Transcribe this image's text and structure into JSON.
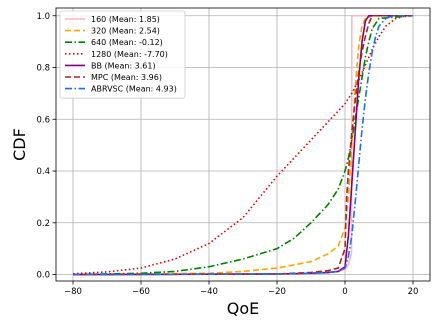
{
  "chart_data": {
    "type": "line",
    "xlabel": "QoE",
    "ylabel": "CDF",
    "xlim": [
      -85,
      25
    ],
    "ylim": [
      -0.025,
      1.03
    ],
    "xticks": [
      -80,
      -60,
      -40,
      -20,
      0,
      20
    ],
    "yticks": [
      0.0,
      0.2,
      0.4,
      0.6,
      0.8,
      1.0
    ],
    "xtick_labels": [
      "−80",
      "−60",
      "−40",
      "−20",
      "0",
      "20"
    ],
    "ytick_labels": [
      "0.0",
      "0.2",
      "0.4",
      "0.6",
      "0.8",
      "1.0"
    ],
    "grid": true,
    "legend_position": "upper-left",
    "series": [
      {
        "name": "160 (Mean: 1.85)",
        "color": "#ffb6c1",
        "dash": "solid",
        "x": [
          -80,
          -20,
          -5,
          -2,
          0,
          1,
          1.9,
          2.0,
          2.1,
          3,
          5,
          10,
          20
        ],
        "y": [
          0,
          0.002,
          0.006,
          0.012,
          0.02,
          0.04,
          0.08,
          1.0,
          1.0,
          1.0,
          1.0,
          1.0,
          1.0
        ]
      },
      {
        "name": "320 (Mean: 2.54)",
        "color": "#ffa500",
        "dash": "dashed",
        "x": [
          -80,
          -40,
          -30,
          -20,
          -10,
          -5,
          -2,
          0,
          1,
          2,
          3,
          4,
          5,
          6,
          8,
          10,
          20
        ],
        "y": [
          0,
          0.005,
          0.012,
          0.025,
          0.05,
          0.08,
          0.11,
          0.18,
          0.3,
          0.5,
          0.72,
          0.88,
          0.96,
          0.99,
          1.0,
          1.0,
          1.0
        ]
      },
      {
        "name": "640 (Mean: -0.12)",
        "color": "#008000",
        "dash": "dashdot",
        "x": [
          -80,
          -60,
          -50,
          -40,
          -30,
          -20,
          -15,
          -10,
          -5,
          -2,
          0,
          1,
          2,
          3,
          4,
          5,
          6,
          7,
          8,
          10,
          20
        ],
        "y": [
          0,
          0.005,
          0.012,
          0.03,
          0.06,
          0.1,
          0.14,
          0.2,
          0.27,
          0.33,
          0.4,
          0.45,
          0.52,
          0.6,
          0.68,
          0.76,
          0.84,
          0.9,
          0.95,
          0.99,
          1.0
        ]
      },
      {
        "name": "1280 (Mean: -7.70)",
        "color": "#e00000",
        "dash": "dotted",
        "x": [
          -80,
          -70,
          -60,
          -50,
          -40,
          -30,
          -20,
          -15,
          -10,
          -5,
          0,
          2,
          4,
          6,
          8,
          10,
          12,
          15,
          18,
          20
        ],
        "y": [
          0.003,
          0.01,
          0.025,
          0.06,
          0.12,
          0.22,
          0.38,
          0.45,
          0.52,
          0.59,
          0.66,
          0.7,
          0.75,
          0.81,
          0.87,
          0.92,
          0.96,
          0.99,
          1.0,
          1.0
        ]
      },
      {
        "name": "BB (Mean: 3.61)",
        "color": "#800080",
        "dash": "solid",
        "x": [
          -80,
          -20,
          -10,
          -5,
          -2,
          0,
          1,
          2,
          3,
          4,
          5,
          6,
          7,
          8,
          10,
          20
        ],
        "y": [
          0,
          0.002,
          0.005,
          0.008,
          0.012,
          0.03,
          0.15,
          0.35,
          0.55,
          0.75,
          0.9,
          0.98,
          1.0,
          1.0,
          1.0,
          1.0
        ]
      },
      {
        "name": "MPC (Mean: 3.96)",
        "color": "#b22222",
        "dash": "dashed",
        "x": [
          -80,
          -20,
          -10,
          -5,
          -2,
          0,
          0.5,
          1,
          2,
          3,
          4,
          5,
          6,
          7,
          8,
          10,
          20
        ],
        "y": [
          0,
          0.002,
          0.008,
          0.015,
          0.025,
          0.1,
          0.3,
          0.4,
          0.55,
          0.67,
          0.78,
          0.86,
          0.92,
          0.97,
          1.0,
          1.0,
          1.0
        ]
      },
      {
        "name": "ABRVSC (Mean: 4.93)",
        "color": "#1e6fe0",
        "dash": "dashdot",
        "x": [
          -80,
          -20,
          -10,
          -5,
          -2,
          0,
          1,
          2,
          3,
          4,
          5,
          6,
          7,
          8,
          9,
          10,
          12,
          14,
          20
        ],
        "y": [
          0,
          0.002,
          0.005,
          0.008,
          0.012,
          0.025,
          0.07,
          0.15,
          0.28,
          0.42,
          0.56,
          0.68,
          0.78,
          0.86,
          0.92,
          0.96,
          0.99,
          1.0,
          1.0
        ]
      }
    ]
  }
}
